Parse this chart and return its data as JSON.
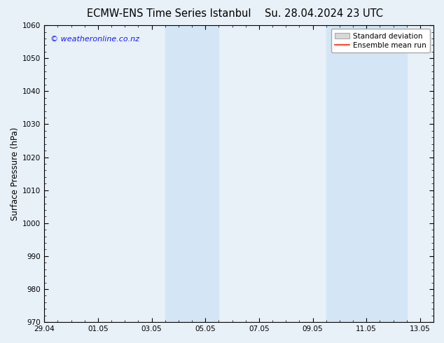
{
  "title_left": "ECMW-ENS Time Series Istanbul",
  "title_right": "Su. 28.04.2024 23 UTC",
  "ylabel": "Surface Pressure (hPa)",
  "ylim": [
    970,
    1060
  ],
  "yticks": [
    970,
    980,
    990,
    1000,
    1010,
    1020,
    1030,
    1040,
    1050,
    1060
  ],
  "xlim_start": 0.0,
  "xlim_end": 14.5,
  "xtick_positions": [
    0,
    2,
    4,
    6,
    8,
    10,
    12,
    14
  ],
  "xtick_labels": [
    "29.04",
    "01.05",
    "03.05",
    "05.05",
    "07.05",
    "09.05",
    "11.05",
    "13.05"
  ],
  "shaded_bands": [
    {
      "xmin": 4.5,
      "xmax": 6.5
    },
    {
      "xmin": 10.5,
      "xmax": 13.5
    }
  ],
  "shade_color": "#d4e6f5",
  "watermark": "© weatheronline.co.nz",
  "watermark_color": "#1a1aff",
  "legend_std_label": "Standard deviation",
  "legend_mean_label": "Ensemble mean run",
  "legend_std_color": "#d8d8d8",
  "legend_mean_color": "#ff2200",
  "bg_color": "#e8f0f8",
  "plot_bg_color": "#e8f0f8",
  "title_fontsize": 10.5,
  "tick_fontsize": 7.5,
  "ylabel_fontsize": 8.5,
  "watermark_fontsize": 8,
  "legend_fontsize": 7.5
}
